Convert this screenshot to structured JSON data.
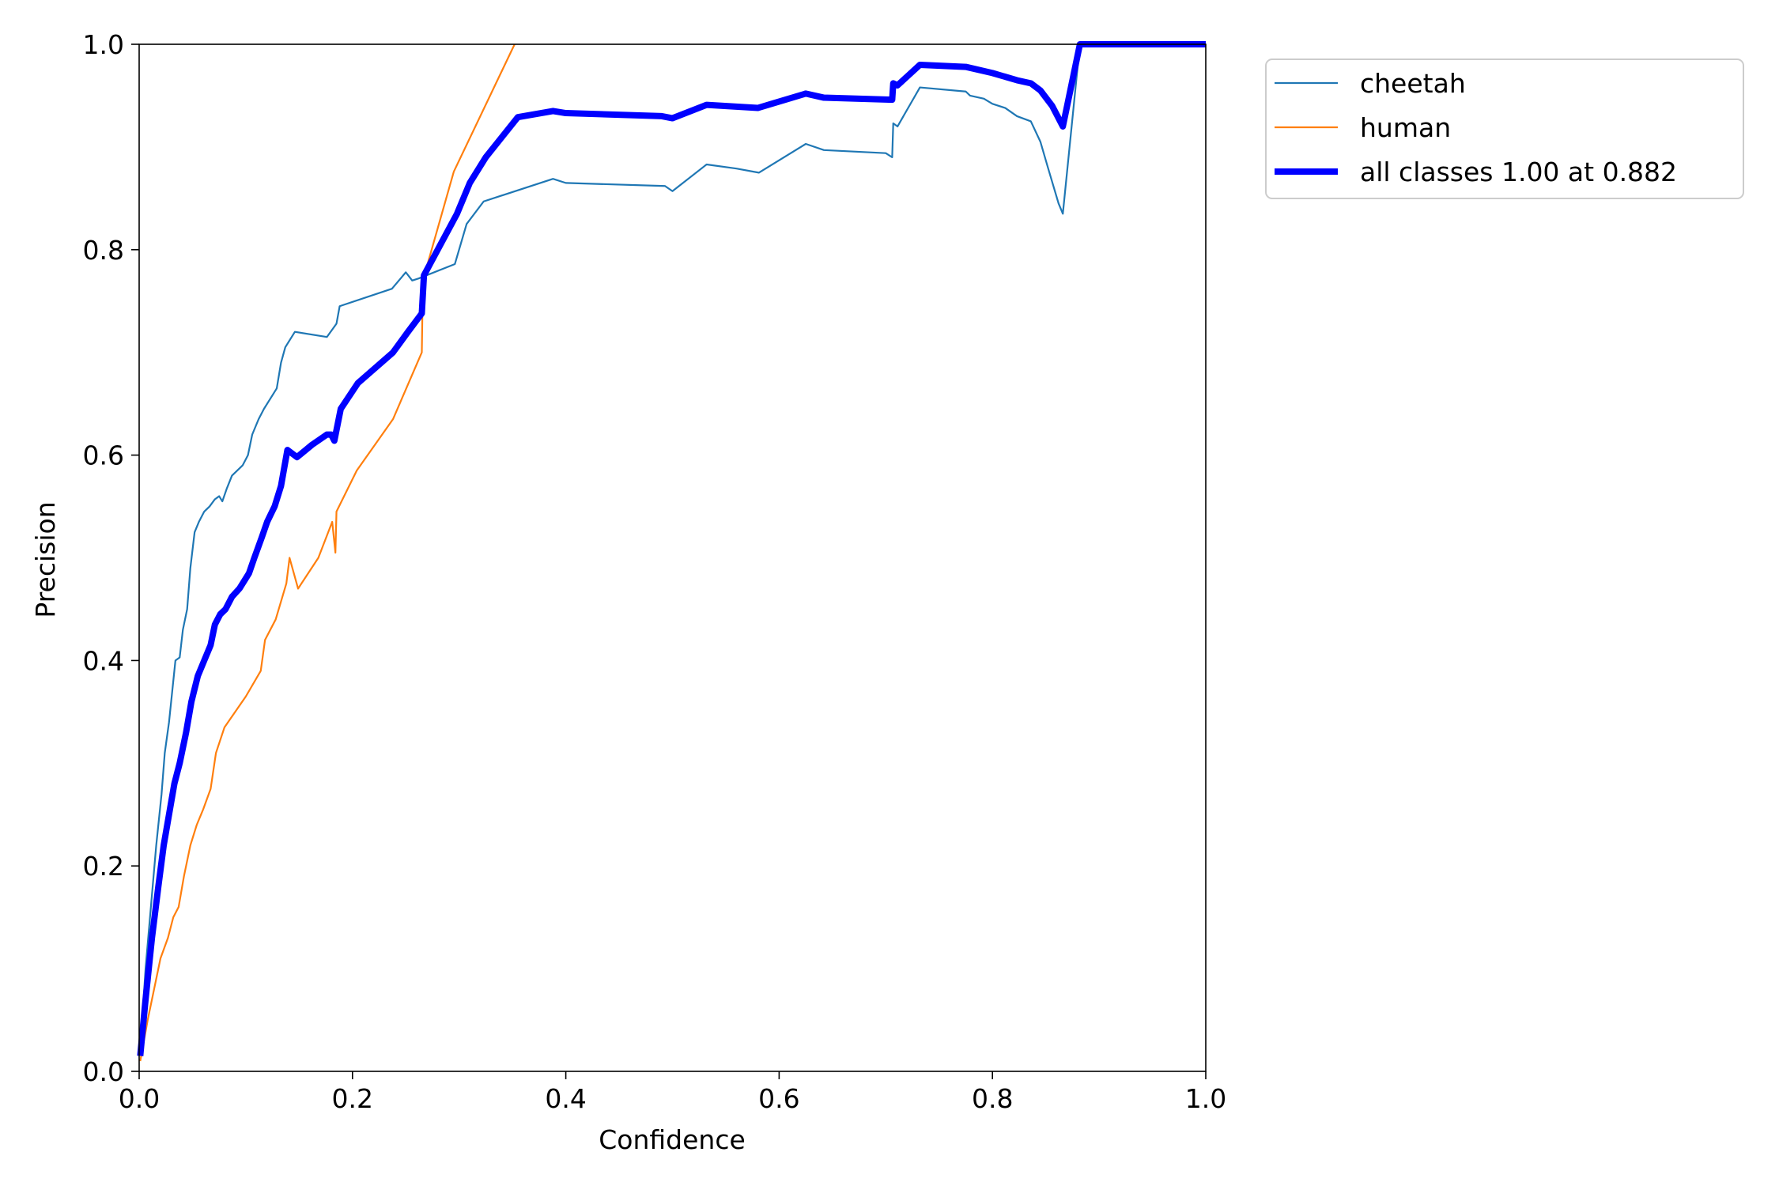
{
  "chart_data": {
    "type": "line",
    "title": "",
    "xlabel": "Confidence",
    "ylabel": "Precision",
    "xlim": [
      0.0,
      1.0
    ],
    "ylim": [
      0.0,
      1.0
    ],
    "grid": false,
    "legend_placement": "outside-top-right",
    "xticks": [
      {
        "value": 0.0,
        "label": "0.0"
      },
      {
        "value": 0.2,
        "label": "0.2"
      },
      {
        "value": 0.4,
        "label": "0.4"
      },
      {
        "value": 0.6,
        "label": "0.6"
      },
      {
        "value": 0.8,
        "label": "0.8"
      },
      {
        "value": 1.0,
        "label": "1.0"
      }
    ],
    "yticks": [
      {
        "value": 0.0,
        "label": "0.0"
      },
      {
        "value": 0.2,
        "label": "0.2"
      },
      {
        "value": 0.4,
        "label": "0.4"
      },
      {
        "value": 0.6,
        "label": "0.6"
      },
      {
        "value": 0.8,
        "label": "0.8"
      },
      {
        "value": 1.0,
        "label": "1.0"
      }
    ],
    "series": [
      {
        "name": "cheetah",
        "color": "#1f77b4",
        "emphasis": "thin",
        "points": [
          [
            0.001,
            0.02
          ],
          [
            0.006,
            0.1
          ],
          [
            0.011,
            0.16
          ],
          [
            0.016,
            0.22
          ],
          [
            0.021,
            0.27
          ],
          [
            0.024,
            0.31
          ],
          [
            0.028,
            0.34
          ],
          [
            0.031,
            0.37
          ],
          [
            0.034,
            0.4
          ],
          [
            0.038,
            0.403
          ],
          [
            0.041,
            0.43
          ],
          [
            0.045,
            0.45
          ],
          [
            0.048,
            0.49
          ],
          [
            0.052,
            0.525
          ],
          [
            0.056,
            0.535
          ],
          [
            0.061,
            0.545
          ],
          [
            0.066,
            0.55
          ],
          [
            0.071,
            0.557
          ],
          [
            0.075,
            0.56
          ],
          [
            0.078,
            0.555
          ],
          [
            0.082,
            0.567
          ],
          [
            0.087,
            0.58
          ],
          [
            0.092,
            0.585
          ],
          [
            0.097,
            0.59
          ],
          [
            0.102,
            0.6
          ],
          [
            0.106,
            0.62
          ],
          [
            0.112,
            0.635
          ],
          [
            0.117,
            0.645
          ],
          [
            0.123,
            0.655
          ],
          [
            0.129,
            0.665
          ],
          [
            0.133,
            0.69
          ],
          [
            0.137,
            0.705
          ],
          [
            0.146,
            0.72
          ],
          [
            0.176,
            0.715
          ],
          [
            0.185,
            0.728
          ],
          [
            0.188,
            0.745
          ],
          [
            0.237,
            0.762
          ],
          [
            0.25,
            0.778
          ],
          [
            0.256,
            0.77
          ],
          [
            0.262,
            0.772
          ],
          [
            0.296,
            0.786
          ],
          [
            0.307,
            0.825
          ],
          [
            0.323,
            0.847
          ],
          [
            0.388,
            0.869
          ],
          [
            0.4,
            0.865
          ],
          [
            0.493,
            0.862
          ],
          [
            0.5,
            0.857
          ],
          [
            0.532,
            0.883
          ],
          [
            0.56,
            0.879
          ],
          [
            0.581,
            0.875
          ],
          [
            0.625,
            0.903
          ],
          [
            0.642,
            0.897
          ],
          [
            0.7,
            0.894
          ],
          [
            0.706,
            0.89
          ],
          [
            0.707,
            0.923
          ],
          [
            0.711,
            0.92
          ],
          [
            0.732,
            0.958
          ],
          [
            0.775,
            0.954
          ],
          [
            0.779,
            0.95
          ],
          [
            0.792,
            0.947
          ],
          [
            0.8,
            0.942
          ],
          [
            0.812,
            0.938
          ],
          [
            0.823,
            0.93
          ],
          [
            0.836,
            0.925
          ],
          [
            0.845,
            0.905
          ],
          [
            0.852,
            0.88
          ],
          [
            0.862,
            0.845
          ],
          [
            0.866,
            0.835
          ],
          [
            0.882,
            1.0
          ],
          [
            1.0,
            1.0
          ]
        ]
      },
      {
        "name": "human",
        "color": "#ff7f0e",
        "emphasis": "thin",
        "points": [
          [
            0.001,
            0.01
          ],
          [
            0.008,
            0.05
          ],
          [
            0.014,
            0.08
          ],
          [
            0.02,
            0.11
          ],
          [
            0.027,
            0.13
          ],
          [
            0.032,
            0.15
          ],
          [
            0.037,
            0.16
          ],
          [
            0.042,
            0.19
          ],
          [
            0.048,
            0.22
          ],
          [
            0.054,
            0.24
          ],
          [
            0.06,
            0.255
          ],
          [
            0.067,
            0.275
          ],
          [
            0.072,
            0.31
          ],
          [
            0.08,
            0.335
          ],
          [
            0.09,
            0.35
          ],
          [
            0.1,
            0.365
          ],
          [
            0.114,
            0.39
          ],
          [
            0.118,
            0.42
          ],
          [
            0.128,
            0.44
          ],
          [
            0.138,
            0.475
          ],
          [
            0.141,
            0.5
          ],
          [
            0.149,
            0.47
          ],
          [
            0.168,
            0.5
          ],
          [
            0.181,
            0.535
          ],
          [
            0.184,
            0.505
          ],
          [
            0.185,
            0.545
          ],
          [
            0.204,
            0.585
          ],
          [
            0.238,
            0.635
          ],
          [
            0.265,
            0.7
          ],
          [
            0.266,
            0.77
          ],
          [
            0.295,
            0.876
          ],
          [
            0.352,
            1.0
          ]
        ]
      },
      {
        "name": "all classes 1.00 at 0.882",
        "color": "#0000ff",
        "emphasis": "thick",
        "points": [
          [
            0.001,
            0.015
          ],
          [
            0.006,
            0.07
          ],
          [
            0.012,
            0.13
          ],
          [
            0.018,
            0.18
          ],
          [
            0.023,
            0.22
          ],
          [
            0.028,
            0.25
          ],
          [
            0.033,
            0.28
          ],
          [
            0.038,
            0.3
          ],
          [
            0.044,
            0.33
          ],
          [
            0.049,
            0.36
          ],
          [
            0.055,
            0.385
          ],
          [
            0.061,
            0.4
          ],
          [
            0.067,
            0.415
          ],
          [
            0.071,
            0.435
          ],
          [
            0.076,
            0.445
          ],
          [
            0.081,
            0.45
          ],
          [
            0.087,
            0.462
          ],
          [
            0.094,
            0.47
          ],
          [
            0.103,
            0.485
          ],
          [
            0.108,
            0.5
          ],
          [
            0.115,
            0.52
          ],
          [
            0.12,
            0.535
          ],
          [
            0.127,
            0.55
          ],
          [
            0.133,
            0.57
          ],
          [
            0.139,
            0.605
          ],
          [
            0.148,
            0.598
          ],
          [
            0.162,
            0.61
          ],
          [
            0.176,
            0.62
          ],
          [
            0.18,
            0.62
          ],
          [
            0.183,
            0.614
          ],
          [
            0.189,
            0.645
          ],
          [
            0.205,
            0.67
          ],
          [
            0.238,
            0.7
          ],
          [
            0.252,
            0.72
          ],
          [
            0.265,
            0.738
          ],
          [
            0.267,
            0.775
          ],
          [
            0.298,
            0.835
          ],
          [
            0.31,
            0.865
          ],
          [
            0.325,
            0.89
          ],
          [
            0.355,
            0.929
          ],
          [
            0.388,
            0.935
          ],
          [
            0.4,
            0.933
          ],
          [
            0.49,
            0.93
          ],
          [
            0.5,
            0.928
          ],
          [
            0.532,
            0.941
          ],
          [
            0.58,
            0.938
          ],
          [
            0.625,
            0.952
          ],
          [
            0.642,
            0.948
          ],
          [
            0.706,
            0.946
          ],
          [
            0.707,
            0.962
          ],
          [
            0.711,
            0.96
          ],
          [
            0.732,
            0.98
          ],
          [
            0.775,
            0.978
          ],
          [
            0.8,
            0.972
          ],
          [
            0.823,
            0.965
          ],
          [
            0.836,
            0.962
          ],
          [
            0.845,
            0.955
          ],
          [
            0.856,
            0.94
          ],
          [
            0.866,
            0.92
          ],
          [
            0.882,
            1.0
          ],
          [
            1.0,
            1.0
          ]
        ]
      }
    ]
  }
}
